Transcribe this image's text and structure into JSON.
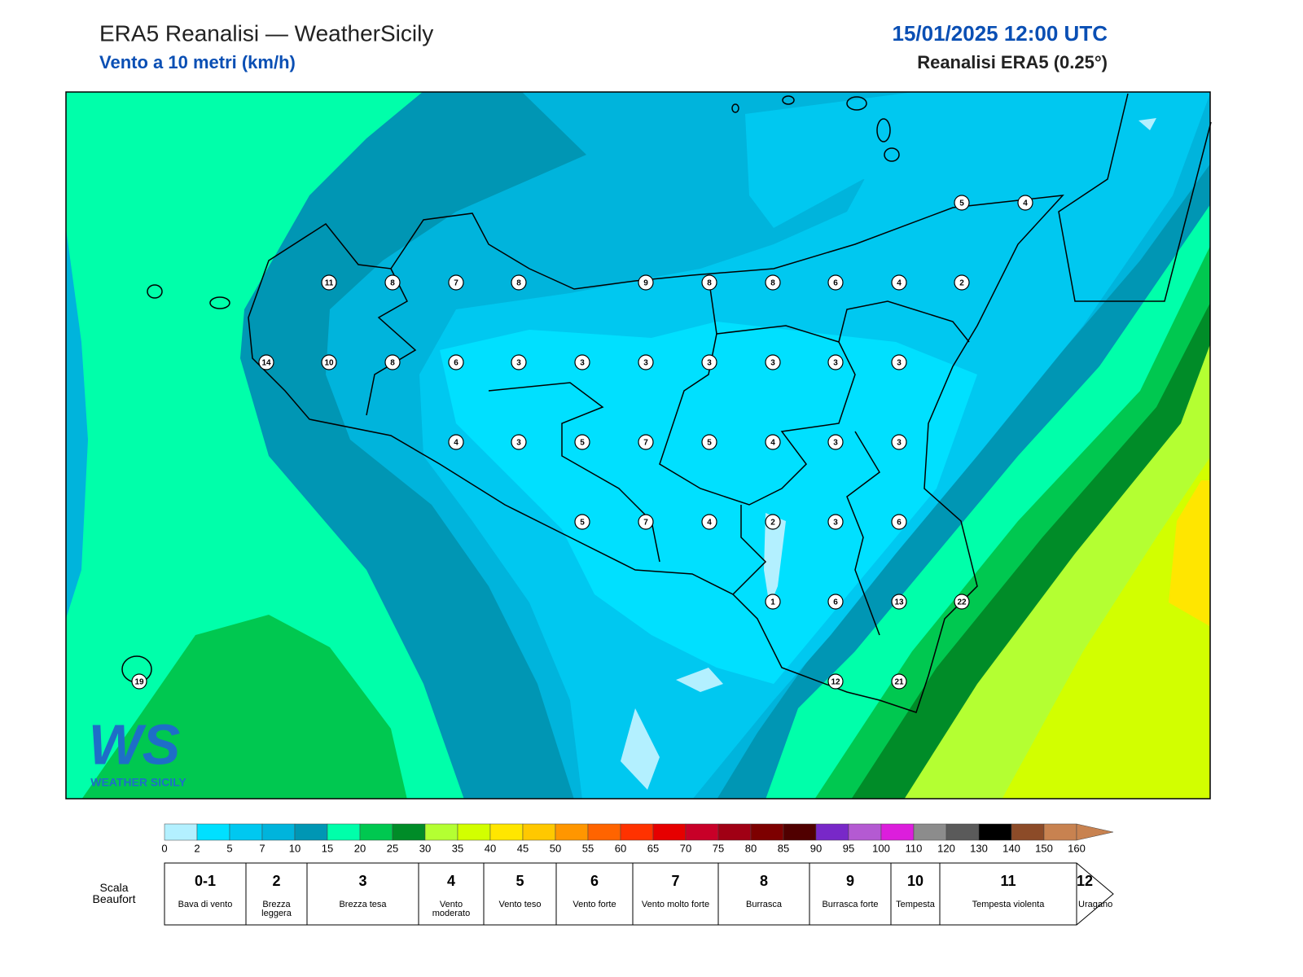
{
  "header": {
    "title": "ERA5 Reanalisi — WeatherSicily",
    "subtitle": "Vento a 10 metri (km/h)",
    "datetime": "15/01/2025 12:00 UTC",
    "model": "Reanalisi ERA5 (0.25°)"
  },
  "stations": [
    5,
    4,
    11,
    8,
    7,
    8,
    9,
    8,
    8,
    6,
    4,
    2,
    14,
    10,
    8,
    6,
    3,
    3,
    3,
    3,
    3,
    3,
    3,
    4,
    3,
    5,
    7,
    5,
    4,
    3,
    3,
    5,
    7,
    4,
    2,
    3,
    6,
    1,
    6,
    13,
    22,
    19,
    12,
    21
  ],
  "logo": {
    "mark": "WS",
    "text": "WEATHER SICILY"
  },
  "colorbar": {
    "levels": [
      0,
      2,
      5,
      7,
      10,
      15,
      20,
      25,
      30,
      35,
      40,
      45,
      50,
      55,
      60,
      65,
      70,
      75,
      80,
      85,
      90,
      95,
      100,
      110,
      120,
      130,
      140,
      150,
      160
    ],
    "colors": [
      "#b3f0ff",
      "#00e0ff",
      "#00c8f0",
      "#00b4dc",
      "#0096b4",
      "#00ffaa",
      "#00c850",
      "#008c28",
      "#b4ff32",
      "#d2ff00",
      "#ffe600",
      "#ffc800",
      "#ff9600",
      "#ff6400",
      "#ff3200",
      "#e60000",
      "#c80028",
      "#a00014",
      "#7d0000",
      "#500000",
      "#7828c8",
      "#b45ad2",
      "#dc1edc",
      "#8c8c8c",
      "#5a5a5a",
      "#000000",
      "#8c4b28",
      "#c88250"
    ]
  },
  "beaufort": {
    "label": "Scala Beaufort",
    "classes": [
      {
        "force": "0-1",
        "desc": "Bava di vento"
      },
      {
        "force": "2",
        "desc": "Brezza leggera"
      },
      {
        "force": "3",
        "desc": "Brezza tesa"
      },
      {
        "force": "4",
        "desc": "Vento moderato"
      },
      {
        "force": "5",
        "desc": "Vento teso"
      },
      {
        "force": "6",
        "desc": "Vento forte"
      },
      {
        "force": "7",
        "desc": "Vento molto forte"
      },
      {
        "force": "8",
        "desc": "Burrasca"
      },
      {
        "force": "9",
        "desc": "Burrasca forte"
      },
      {
        "force": "10",
        "desc": "Tempesta"
      },
      {
        "force": "11",
        "desc": "Tempesta violenta"
      },
      {
        "force": "12",
        "desc": "Uragano"
      }
    ]
  }
}
